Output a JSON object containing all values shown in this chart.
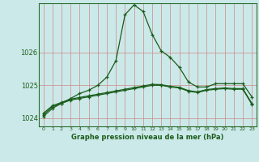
{
  "title": "Graphe pression niveau de la mer (hPa)",
  "background_color": "#cce9e9",
  "grid_color_v": "#cc8888",
  "grid_color_h": "#cc8888",
  "line_color": "#1a5c1a",
  "x_labels": [
    "0",
    "1",
    "2",
    "3",
    "4",
    "5",
    "6",
    "7",
    "8",
    "9",
    "10",
    "11",
    "12",
    "13",
    "14",
    "15",
    "16",
    "17",
    "18",
    "19",
    "20",
    "21",
    "22",
    "23"
  ],
  "ylim": [
    1023.75,
    1027.5
  ],
  "yticks": [
    1024,
    1025,
    1026
  ],
  "series1": [
    1024.05,
    1024.3,
    1024.45,
    1024.6,
    1024.75,
    1024.85,
    1025.0,
    1025.25,
    1025.75,
    1027.15,
    1027.45,
    1027.25,
    1026.55,
    1026.05,
    1025.85,
    1025.55,
    1025.1,
    1024.95,
    1024.95,
    1025.05,
    1025.05,
    1025.05,
    1025.05,
    1024.65
  ],
  "series2": [
    1024.1,
    1024.35,
    1024.45,
    1024.55,
    1024.6,
    1024.65,
    1024.7,
    1024.75,
    1024.8,
    1024.85,
    1024.9,
    1024.95,
    1025.0,
    1025.0,
    1024.95,
    1024.92,
    1024.82,
    1024.78,
    1024.85,
    1024.88,
    1024.9,
    1024.88,
    1024.88,
    1024.42
  ],
  "series3": [
    1024.15,
    1024.38,
    1024.48,
    1024.58,
    1024.63,
    1024.68,
    1024.73,
    1024.78,
    1024.83,
    1024.88,
    1024.93,
    1024.98,
    1025.03,
    1025.02,
    1024.97,
    1024.94,
    1024.84,
    1024.8,
    1024.87,
    1024.9,
    1024.92,
    1024.9,
    1024.9,
    1024.45
  ]
}
